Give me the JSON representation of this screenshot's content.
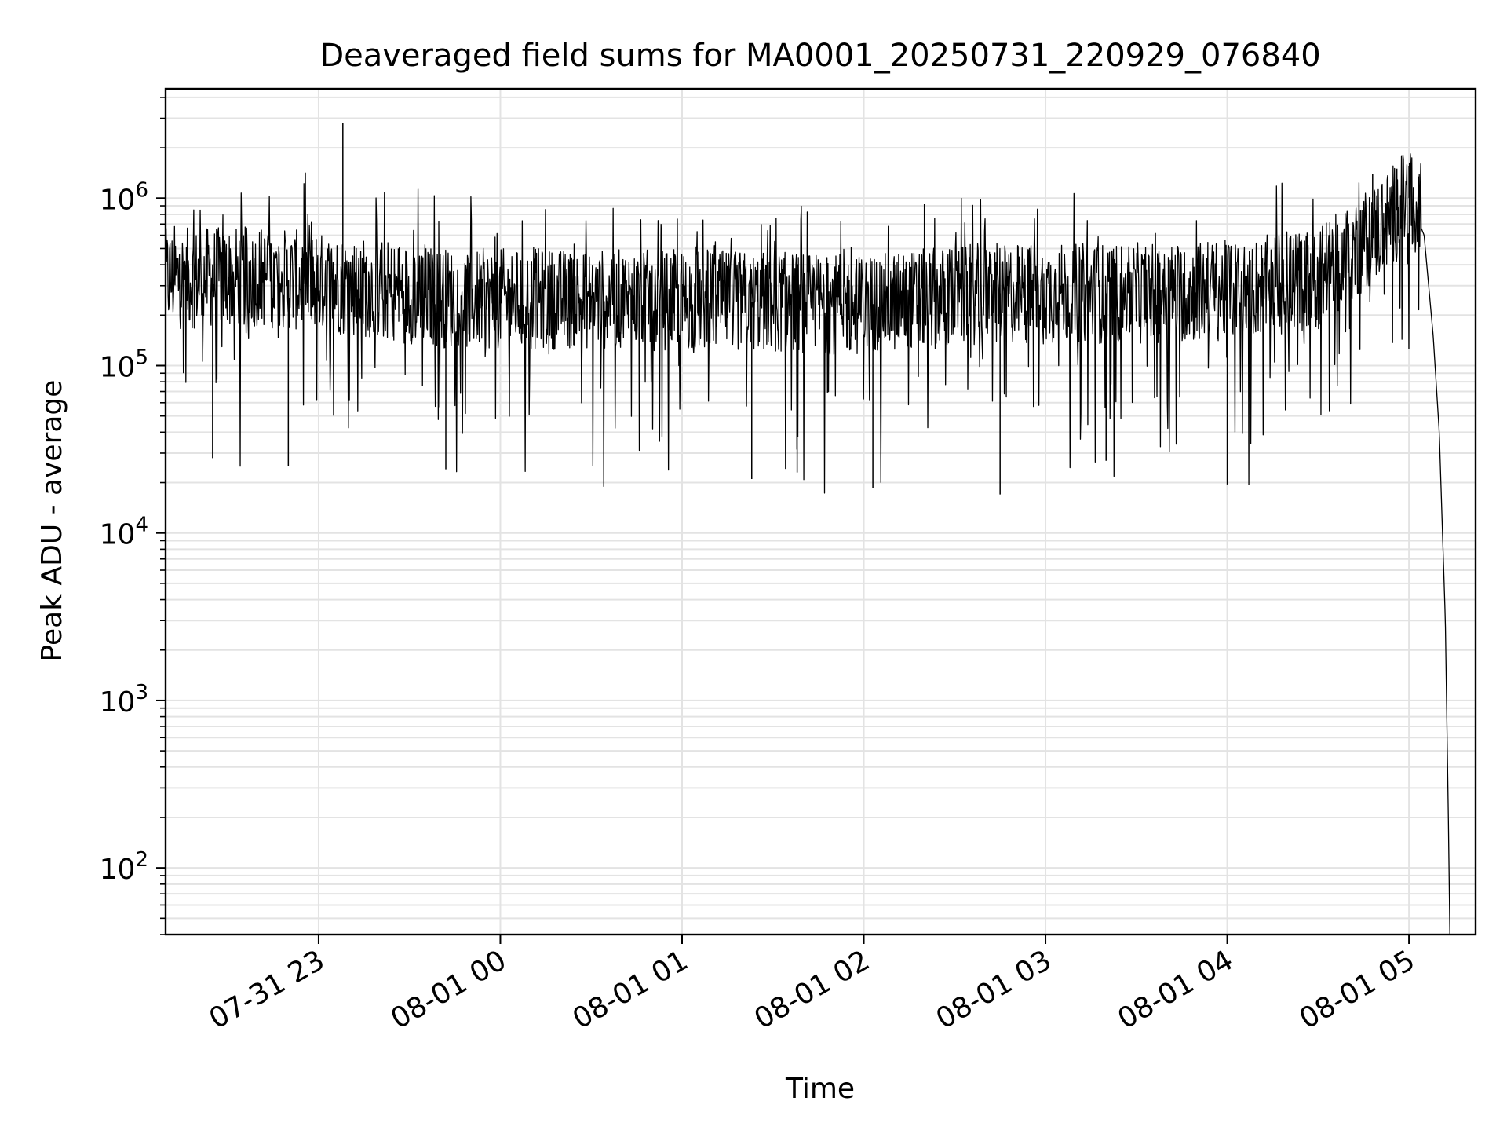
{
  "chart_data": {
    "type": "line",
    "title": "Deaveraged field sums for MA0001_20250731_220929_076840",
    "xlabel": "Time",
    "ylabel": "Peak ADU - average",
    "y_scale": "log",
    "ylim": [
      40,
      4500000
    ],
    "xlim": [
      "2025-07-31 22:09:29",
      "2025-08-01 05:22:00"
    ],
    "grid": true,
    "line_color": "#000000",
    "grid_color": "#e3e3e3",
    "x_ticks": [
      {
        "value": "2025-07-31 23:00",
        "label": "07-31 23"
      },
      {
        "value": "2025-08-01 00:00",
        "label": "08-01 00"
      },
      {
        "value": "2025-08-01 01:00",
        "label": "08-01 01"
      },
      {
        "value": "2025-08-01 02:00",
        "label": "08-01 02"
      },
      {
        "value": "2025-08-01 03:00",
        "label": "08-01 03"
      },
      {
        "value": "2025-08-01 04:00",
        "label": "08-01 04"
      },
      {
        "value": "2025-08-01 05:00",
        "label": "08-01 05"
      }
    ],
    "y_ticks": [
      {
        "value": 100,
        "base": "10",
        "exp": "2"
      },
      {
        "value": 1000,
        "base": "10",
        "exp": "3"
      },
      {
        "value": 10000,
        "base": "10",
        "exp": "4"
      },
      {
        "value": 100000,
        "base": "10",
        "exp": "5"
      },
      {
        "value": 1000000,
        "base": "10",
        "exp": "6"
      }
    ],
    "series": [
      {
        "baseline_points": [
          {
            "x": "2025-07-31 22:09:29",
            "y": 330000
          },
          {
            "x": "2025-07-31 22:40:00",
            "y": 340000
          },
          {
            "x": "2025-07-31 23:10:00",
            "y": 300000
          },
          {
            "x": "2025-07-31 23:45:00",
            "y": 250000
          },
          {
            "x": "2025-08-01 00:30:00",
            "y": 250000
          },
          {
            "x": "2025-08-01 01:30:00",
            "y": 240000
          },
          {
            "x": "2025-08-01 02:00:00",
            "y": 230000
          },
          {
            "x": "2025-08-01 02:40:00",
            "y": 270000
          },
          {
            "x": "2025-08-01 03:30:00",
            "y": 270000
          },
          {
            "x": "2025-08-01 04:00:00",
            "y": 280000
          },
          {
            "x": "2025-08-01 04:30:00",
            "y": 330000
          },
          {
            "x": "2025-08-01 04:50:00",
            "y": 650000
          },
          {
            "x": "2025-08-01 05:00:00",
            "y": 1000000
          },
          {
            "x": "2025-08-01 05:05:00",
            "y": 600000
          },
          {
            "x": "2025-08-01 05:08:00",
            "y": 150000
          },
          {
            "x": "2025-08-01 05:10:00",
            "y": 40000
          },
          {
            "x": "2025-08-01 05:12:00",
            "y": 3000
          },
          {
            "x": "2025-08-01 05:13:00",
            "y": 200
          },
          {
            "x": "2025-08-01 05:13:30",
            "y": 40
          }
        ],
        "spikes": [
          {
            "x": "2025-07-31 23:08:00",
            "y": 2800000
          },
          {
            "x": "2025-08-01 02:20:00",
            "y": 920000
          },
          {
            "x": "2025-08-01 05:00:00",
            "y": 1550000
          },
          {
            "x": "2025-08-01 04:56:00",
            "y": 1500000
          },
          {
            "x": "2025-08-01 04:48:00",
            "y": 1400000
          }
        ],
        "dips": [
          {
            "x": "2025-07-31 22:25:00",
            "y": 28000
          },
          {
            "x": "2025-07-31 22:50:00",
            "y": 25000
          },
          {
            "x": "2025-07-31 23:42:00",
            "y": 24000
          },
          {
            "x": "2025-08-01 01:23:00",
            "y": 21000
          },
          {
            "x": "2025-08-01 02:03:00",
            "y": 18500
          },
          {
            "x": "2025-08-01 02:45:00",
            "y": 17000
          },
          {
            "x": "2025-08-01 04:00:00",
            "y": 19500
          },
          {
            "x": "2025-08-01 01:38:00",
            "y": 23000
          },
          {
            "x": "2025-08-01 03:20:00",
            "y": 27000
          }
        ],
        "noise_amplitude_decades": 0.55
      }
    ]
  }
}
